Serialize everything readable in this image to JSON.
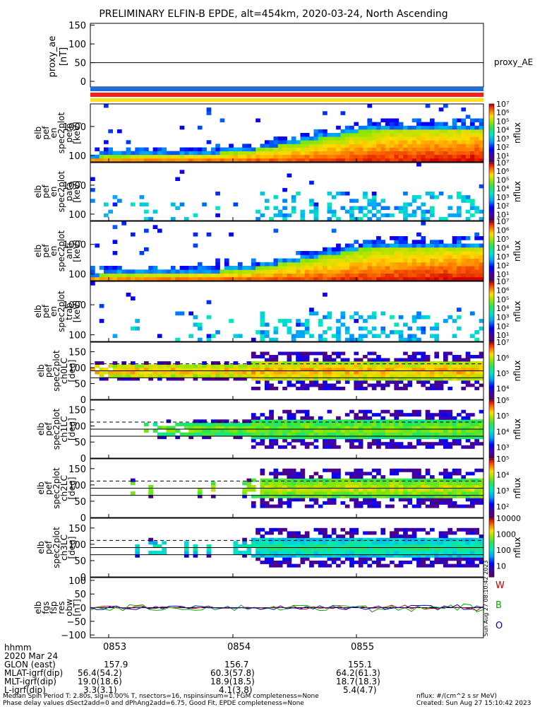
{
  "title": "PRELIMINARY ELFIN-B EPDE, alt=454km, 2020-03-24, North Ascending",
  "chart_data": {
    "type": "heatmap",
    "time_ticks": [
      "0853",
      "0854",
      "0855"
    ],
    "time_range_hhmm": [
      "0852:50",
      "0855:55"
    ],
    "panels": [
      {
        "id": "proxy_ae",
        "ylabel": [
          "proxy_ae",
          "[nT]"
        ],
        "yticks": [
          "150",
          "100",
          "50",
          "0"
        ],
        "ylim": [
          -15,
          155
        ],
        "log": false,
        "legend": "proxy_AE",
        "ref_line": 50,
        "type": "line"
      },
      {
        "id": "pef_en_perp",
        "ylabel": [
          "elb",
          "pef",
          "en",
          "spec2plot",
          "perp",
          "[keV]"
        ],
        "yticks": [
          "1000",
          "100"
        ],
        "ylim": [
          60,
          6000
        ],
        "log": true,
        "cbar_label": "nflux",
        "cbar_ticks": [
          "10⁷",
          "10⁶",
          "10⁵",
          "10⁴",
          "10³",
          "10²",
          "10¹"
        ],
        "cbar_range": [
          1,
          7
        ],
        "median_line": true
      },
      {
        "id": "pef_en_para",
        "ylabel": [
          "elb",
          "pef",
          "en",
          "spec2plot",
          "para",
          "[keV]"
        ],
        "yticks": [
          "1000",
          "100"
        ],
        "ylim": [
          60,
          6000
        ],
        "log": true,
        "cbar_label": "nflux",
        "cbar_ticks": [
          "10⁷",
          "10⁶",
          "10⁵",
          "10⁴",
          "10³",
          "10²",
          "10¹"
        ],
        "cbar_range": [
          1,
          7
        ],
        "median_line": false
      },
      {
        "id": "pef_en_anti",
        "ylabel": [
          "elb",
          "pef",
          "en",
          "spec2plot",
          "anti",
          "[keV]"
        ],
        "yticks": [
          "1000",
          "100"
        ],
        "ylim": [
          60,
          6000
        ],
        "log": true,
        "cbar_label": "nflux",
        "cbar_ticks": [
          "10⁷",
          "10⁶",
          "10⁵",
          "10⁴",
          "10³",
          "10²",
          "10¹"
        ],
        "cbar_range": [
          1,
          7
        ],
        "median_line": true
      },
      {
        "id": "pef_en_trap",
        "ylabel": [
          "elb",
          "pef",
          "en",
          "spec2plot",
          "trap",
          "[keV]"
        ],
        "yticks": [
          "1000",
          "100"
        ],
        "ylim": [
          60,
          6000
        ],
        "log": true,
        "cbar_label": "nflux",
        "cbar_ticks": [
          "10⁷",
          "10⁶",
          "10⁵",
          "10⁴",
          "10³",
          "10²",
          "10¹"
        ],
        "cbar_range": [
          1,
          7
        ],
        "median_line": false
      },
      {
        "id": "pef_pa_ch0LC",
        "ylabel": [
          "elb",
          "pef",
          "spec2plot",
          "ch0LC",
          "[deg]"
        ],
        "yticks": [
          "150",
          "100",
          "50",
          "0"
        ],
        "ylim": [
          0,
          180
        ],
        "log": false,
        "cbar_label": "nflux",
        "cbar_ticks": [
          "10⁷",
          "10⁶",
          "10⁵",
          "10⁴"
        ],
        "cbar_range": [
          3.5,
          7
        ]
      },
      {
        "id": "pef_pa_ch1LC",
        "ylabel": [
          "elb",
          "pef",
          "spec2plot",
          "ch1LC",
          "[deg]"
        ],
        "yticks": [
          "150",
          "100",
          "50",
          "0"
        ],
        "ylim": [
          0,
          180
        ],
        "log": false,
        "cbar_label": "nflux",
        "cbar_ticks": [
          "10⁶",
          "10⁵",
          "10⁴",
          "10³"
        ],
        "cbar_range": [
          3,
          6.6
        ]
      },
      {
        "id": "pef_pa_ch2LC",
        "ylabel": [
          "elb",
          "pef",
          "spec2plot",
          "ch2LC",
          "[deg]"
        ],
        "yticks": [
          "150",
          "100",
          "50",
          "0"
        ],
        "ylim": [
          0,
          180
        ],
        "log": false,
        "cbar_label": "nflux",
        "cbar_ticks": [
          "10⁵",
          "10⁴",
          "10³",
          "10²"
        ],
        "cbar_range": [
          2,
          5.6
        ]
      },
      {
        "id": "pef_pa_ch3LC",
        "ylabel": [
          "elb",
          "pef",
          "spec2plot",
          "ch3LC",
          "[deg]"
        ],
        "yticks": [
          "150",
          "100",
          "50",
          "0"
        ],
        "ylim": [
          0,
          180
        ],
        "log": false,
        "cbar_label": "nflux",
        "cbar_ticks": [
          "10000",
          "1000",
          "100",
          "10"
        ],
        "cbar_range": [
          1,
          4.3
        ]
      },
      {
        "id": "fgs_res",
        "ylabel": [
          "elb",
          "fgs",
          "fsp",
          "res",
          "obw",
          "[nT]"
        ],
        "yticks": [
          "100",
          "50",
          "0",
          "−50",
          "−100"
        ],
        "ylim": [
          -110,
          110
        ],
        "log": false,
        "legend": [
          "W",
          "B",
          "O"
        ],
        "legend_colors": [
          "#cc0000",
          "#00aa00",
          "#0000cc"
        ],
        "type": "line"
      }
    ]
  },
  "colors": {
    "bar_blue": "#1a6fe0",
    "bar_red": "#f21f1f",
    "bar_yellow": "#ffe21a"
  },
  "stamp": "Sun Aug 27 08:10:42 2023",
  "footer": {
    "hhmm": "hhmm",
    "date": "2020 Mar 24",
    "glon_label": "GLON (east)",
    "glon": [
      "157.9",
      "156.7",
      "155.1"
    ],
    "mlat_label": "MLAT-igrf(dip)",
    "mlat": [
      "56.4(54.2)",
      "60.3(57.8)",
      "64.2(61.3)"
    ],
    "mlt_label": "MLT-igrf(dip)",
    "mlt": [
      "19.0(18.6)",
      "18.9(18.5)",
      "18.7(18.3)"
    ],
    "l_label": "L-igrf(dip)",
    "l": [
      "3.3(3.1)",
      "4.1(3.8)",
      "5.4(4.7)"
    ],
    "note1": "Median Spin Period T: 2.80s, sig=0.00% T, nsectors=16, nspinsinsum=1, FGM completeness=None",
    "note2": "Phase delay values dSect2add=0 and dPhAng2add=6.75, Good Fit, EPDE completeness=None",
    "units": "nflux: #/(cm^2 s sr MeV)",
    "created": "Created: Sun Aug 27 15:10:42 2023"
  }
}
